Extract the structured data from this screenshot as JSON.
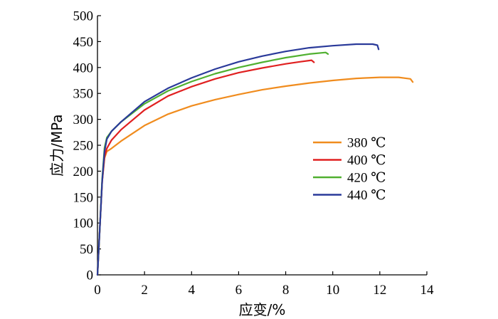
{
  "chart_data": {
    "type": "line",
    "xlabel": "应变/%",
    "ylabel": "应力/MPa",
    "xlim": [
      0,
      14
    ],
    "ylim": [
      0,
      500
    ],
    "xticks": [
      0,
      2,
      4,
      6,
      8,
      10,
      12,
      14
    ],
    "yticks": [
      0,
      50,
      100,
      150,
      200,
      250,
      300,
      350,
      400,
      450,
      500
    ],
    "grid": false,
    "legend_position": "right",
    "series": [
      {
        "name": "380 ℃",
        "color": "#f08c1e",
        "x": [
          0,
          0.1,
          0.2,
          0.3,
          0.4,
          0.6,
          1,
          2,
          3,
          4,
          5,
          6,
          7,
          8,
          9,
          10,
          11,
          12,
          12.8,
          13.3,
          13.4
        ],
        "y": [
          0,
          90,
          180,
          225,
          238,
          244,
          258,
          288,
          310,
          326,
          338,
          348,
          357,
          364,
          370,
          375,
          379,
          381,
          381,
          378,
          372
        ]
      },
      {
        "name": "400 ℃",
        "color": "#e02020",
        "x": [
          0,
          0.1,
          0.2,
          0.3,
          0.4,
          0.6,
          1,
          2,
          3,
          4,
          5,
          6,
          7,
          8,
          8.6,
          9.1,
          9.2
        ],
        "y": [
          0,
          90,
          180,
          228,
          244,
          260,
          280,
          318,
          345,
          363,
          378,
          390,
          399,
          407,
          411,
          414,
          410
        ]
      },
      {
        "name": "420 ℃",
        "color": "#50b030",
        "x": [
          0,
          0.1,
          0.2,
          0.3,
          0.4,
          0.6,
          1,
          2,
          3,
          4,
          5,
          6,
          7,
          8,
          9,
          9.7,
          9.8
        ],
        "y": [
          0,
          90,
          185,
          245,
          265,
          277,
          295,
          330,
          355,
          373,
          388,
          400,
          410,
          419,
          426,
          429,
          426
        ]
      },
      {
        "name": "440 ℃",
        "color": "#2a3a9a",
        "x": [
          0,
          0.1,
          0.2,
          0.3,
          0.4,
          0.6,
          1,
          2,
          3,
          4,
          5,
          6,
          7,
          8,
          9,
          10,
          11,
          11.7,
          11.9,
          11.95
        ],
        "y": [
          0,
          90,
          180,
          238,
          262,
          277,
          295,
          334,
          360,
          380,
          397,
          411,
          422,
          431,
          438,
          442,
          445,
          445,
          443,
          435
        ]
      }
    ]
  }
}
